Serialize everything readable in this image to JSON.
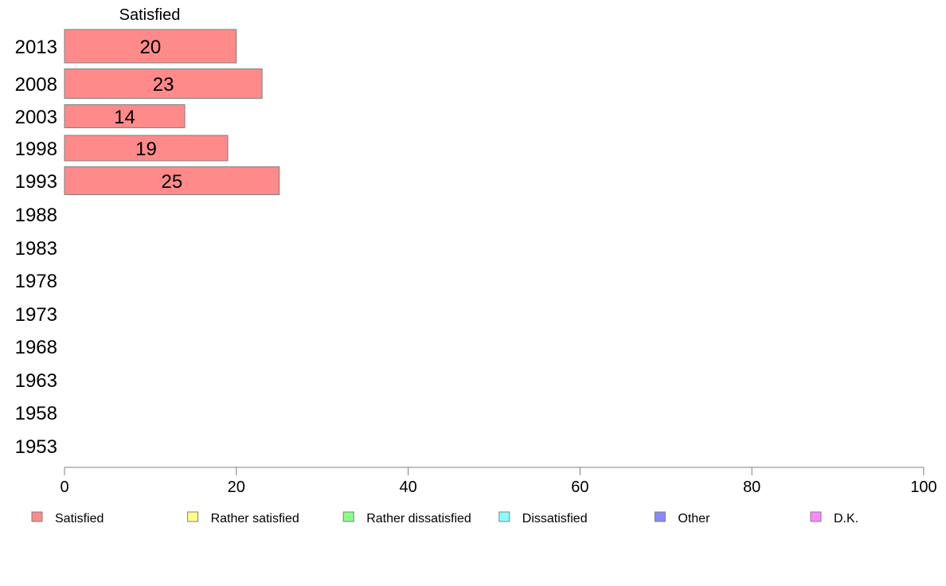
{
  "chart_data": {
    "type": "bar",
    "orientation": "horizontal",
    "stacked": true,
    "categories": [
      "2013",
      "2008",
      "2003",
      "1998",
      "1993",
      "1988",
      "1983",
      "1978",
      "1973",
      "1968",
      "1963",
      "1958",
      "1953"
    ],
    "series": [
      {
        "name": "Satisfied",
        "color": "#ff8a8a",
        "values": [
          20,
          23,
          14,
          19,
          25,
          null,
          null,
          null,
          null,
          null,
          null,
          null,
          null
        ]
      },
      {
        "name": "Rather satisfied",
        "color": "#ffff88",
        "values": [
          null,
          null,
          null,
          null,
          null,
          null,
          null,
          null,
          null,
          null,
          null,
          null,
          null
        ]
      },
      {
        "name": "Rather dissatisfied",
        "color": "#88ff88",
        "values": [
          null,
          null,
          null,
          null,
          null,
          null,
          null,
          null,
          null,
          null,
          null,
          null,
          null
        ]
      },
      {
        "name": "Dissatisfied",
        "color": "#88ffff",
        "values": [
          null,
          null,
          null,
          null,
          null,
          null,
          null,
          null,
          null,
          null,
          null,
          null,
          null
        ]
      },
      {
        "name": "Other",
        "color": "#8888ff",
        "values": [
          null,
          null,
          null,
          null,
          null,
          null,
          null,
          null,
          null,
          null,
          null,
          null,
          null
        ]
      },
      {
        "name": "D.K.",
        "color": "#ff88ff",
        "values": [
          null,
          null,
          null,
          null,
          null,
          null,
          null,
          null,
          null,
          null,
          null,
          null,
          null
        ]
      }
    ],
    "series_header": "Satisfied",
    "xlim": [
      0,
      100
    ],
    "xticks": [
      0,
      20,
      40,
      60,
      80,
      100
    ],
    "grid": false,
    "legend": "bottom"
  }
}
